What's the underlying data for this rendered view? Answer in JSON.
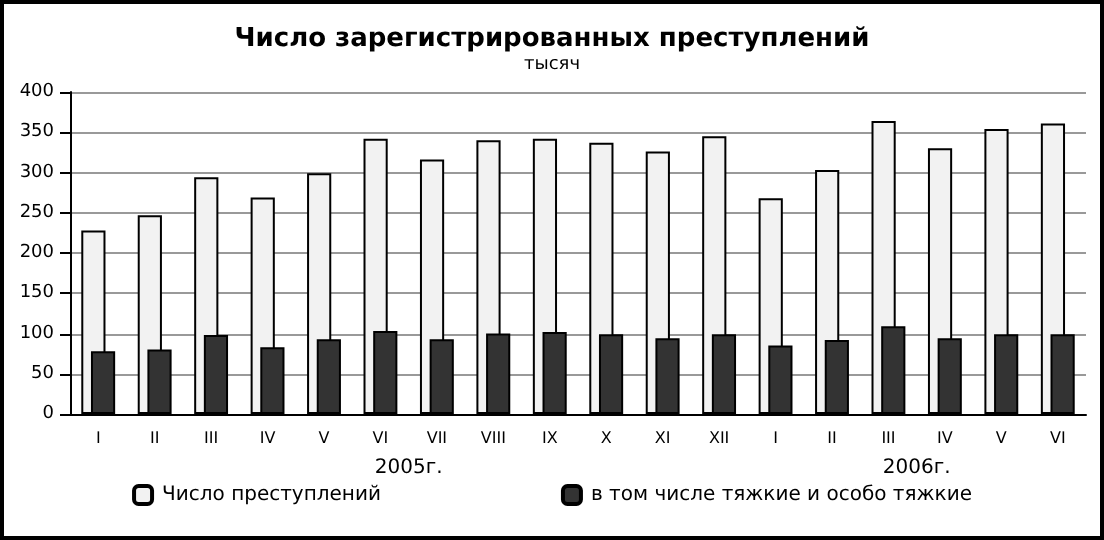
{
  "chart_data": {
    "type": "bar",
    "title": "Число зарегистрированных преступлений",
    "subtitle": "тысяч",
    "categories": [
      "I",
      "II",
      "III",
      "IV",
      "V",
      "VI",
      "VII",
      "VIII",
      "IX",
      "X",
      "XI",
      "XII",
      "I",
      "II",
      "III",
      "IV",
      "V",
      "VI"
    ],
    "series": [
      {
        "name": "Число преступлений",
        "color": "#f2f2f2",
        "values": [
          228,
          247,
          294,
          269,
          299,
          342,
          316,
          340,
          342,
          337,
          326,
          345,
          268,
          303,
          364,
          330,
          354,
          361
        ]
      },
      {
        "name": "в том числе тяжкие и особо тяжкие",
        "color": "#333333",
        "values": [
          78,
          80,
          98,
          83,
          93,
          103,
          93,
          100,
          102,
          99,
          94,
          99,
          85,
          92,
          109,
          94,
          99,
          99
        ]
      }
    ],
    "annotations": [
      "2005г.",
      "2006г."
    ],
    "ylim": [
      0,
      400
    ],
    "yticks": [
      0,
      50,
      100,
      150,
      200,
      250,
      300,
      350,
      400
    ],
    "grid": "y",
    "legend": "bottom"
  }
}
